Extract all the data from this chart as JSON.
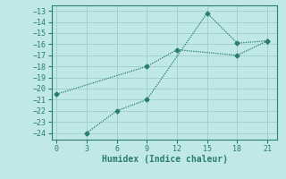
{
  "line1_x": [
    0,
    9,
    12,
    18,
    21
  ],
  "line1_y": [
    -20.5,
    -18.0,
    -16.5,
    -17.0,
    -15.7
  ],
  "line2_x": [
    3,
    6,
    9,
    15,
    18,
    21
  ],
  "line2_y": [
    -24.0,
    -22.0,
    -21.0,
    -13.2,
    -15.9,
    -15.7
  ],
  "color": "#2a7d72",
  "bg_color": "#c0e8e4",
  "grid_color": "#9ccece",
  "xlabel": "Humidex (Indice chaleur)",
  "xlim": [
    -0.5,
    22
  ],
  "ylim": [
    -24.6,
    -12.5
  ],
  "xticks": [
    0,
    3,
    6,
    9,
    12,
    15,
    18,
    21
  ],
  "yticks": [
    -13,
    -14,
    -15,
    -16,
    -17,
    -18,
    -19,
    -20,
    -21,
    -22,
    -23,
    -24
  ],
  "marker": "D",
  "markersize": 2.5,
  "linewidth": 0.9
}
